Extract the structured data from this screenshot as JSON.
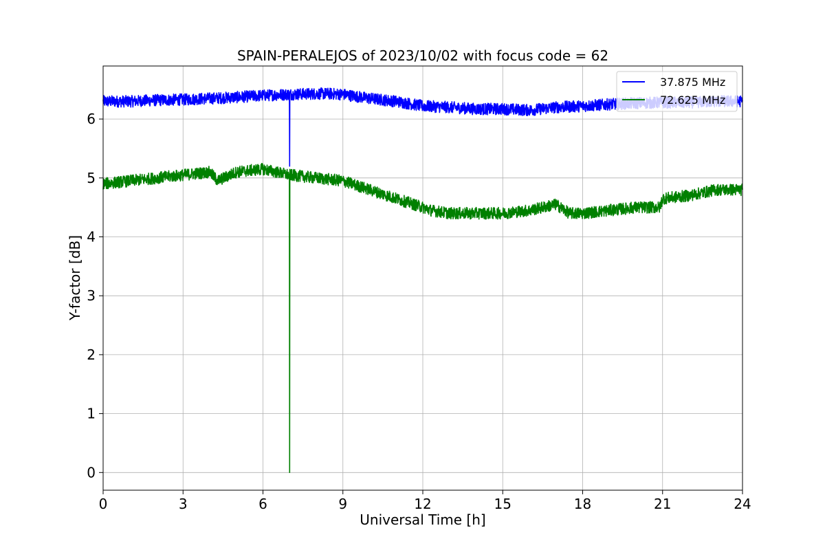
{
  "chart_data": {
    "type": "line",
    "title": "SPAIN-PERALEJOS of 2023/10/02 with focus code = 62",
    "xlabel": "Universal Time [h]",
    "ylabel": "Y-factor [dB]",
    "xlim": [
      0,
      24
    ],
    "ylim": [
      -0.3,
      6.9
    ],
    "xticks": [
      0,
      3,
      6,
      9,
      12,
      15,
      18,
      21,
      24
    ],
    "xtick_labels": [
      "0",
      "3",
      "6",
      "9",
      "12",
      "15",
      "18",
      "21",
      "24"
    ],
    "yticks": [
      0,
      1,
      2,
      3,
      4,
      5,
      6
    ],
    "ytick_labels": [
      "0",
      "1",
      "2",
      "3",
      "4",
      "5",
      "6"
    ],
    "grid": true,
    "legend_position": "top-right",
    "series": [
      {
        "name": "37.875 MHz",
        "color": "#0000ff",
        "noise_amplitude": 0.1,
        "x": [
          0,
          1,
          2,
          3,
          4,
          5,
          6,
          6.99,
          7.0,
          7.01,
          8,
          8.5,
          9,
          10,
          11,
          12,
          13,
          14,
          15,
          16,
          17,
          18,
          19,
          20,
          21,
          22,
          23,
          24
        ],
        "y": [
          6.3,
          6.3,
          6.32,
          6.33,
          6.35,
          6.37,
          6.4,
          6.42,
          5.2,
          6.42,
          6.43,
          6.43,
          6.42,
          6.35,
          6.3,
          6.22,
          6.2,
          6.17,
          6.17,
          6.15,
          6.2,
          6.22,
          6.25,
          6.27,
          6.28,
          6.28,
          6.3,
          6.3
        ]
      },
      {
        "name": "72.625 MHz",
        "color": "#008000",
        "noise_amplitude": 0.1,
        "x": [
          0,
          1,
          2,
          3,
          4,
          4.3,
          5,
          6,
          6.99,
          7.0,
          7.01,
          8,
          9,
          10,
          11,
          12,
          12.3,
          13,
          14,
          15,
          16,
          17,
          17.5,
          18,
          19,
          20,
          20.9,
          21,
          22,
          23,
          24
        ],
        "y": [
          4.9,
          4.95,
          5.0,
          5.05,
          5.1,
          4.95,
          5.1,
          5.15,
          5.05,
          0.0,
          5.05,
          5.0,
          4.95,
          4.8,
          4.65,
          4.5,
          4.45,
          4.4,
          4.4,
          4.4,
          4.45,
          4.55,
          4.4,
          4.4,
          4.45,
          4.5,
          4.5,
          4.65,
          4.7,
          4.8,
          4.8
        ]
      }
    ]
  }
}
